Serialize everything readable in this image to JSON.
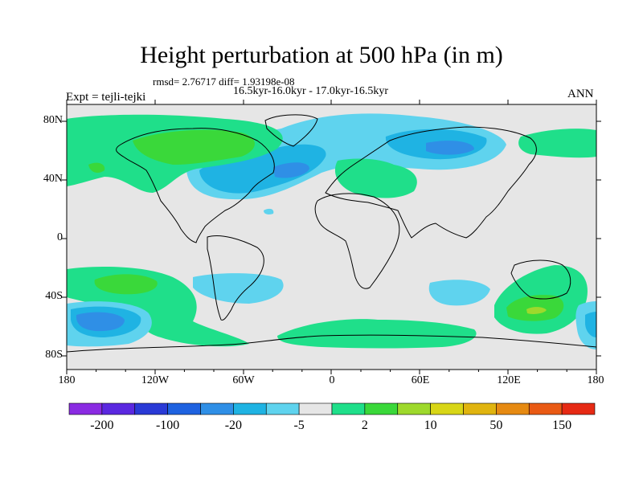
{
  "title": "Height perturbation at 500 hPa (in m)",
  "stats": "rmsd= 2.76717 diff= 1.93198e-08",
  "period": "16.5kyr-16.0kyr - 17.0kyr-16.5kyr",
  "experiment": "Expt = tejli-tejki",
  "season": "ANN",
  "y_axis_labels": [
    "80N",
    "40N",
    "0",
    "40S",
    "80S"
  ],
  "x_axis_labels": [
    "180",
    "120W",
    "60W",
    "0",
    "60E",
    "120E",
    "180"
  ],
  "colorbar": {
    "labels": [
      "-200",
      "-100",
      "-20",
      "-5",
      "2",
      "10",
      "50",
      "150"
    ],
    "colors": [
      "#8a2be2",
      "#5b28e0",
      "#2a3ad6",
      "#1e62e0",
      "#2f8fe6",
      "#1fb3e3",
      "#5fd3ee",
      "#e6e6e6",
      "#1fdf8a",
      "#3ad83a",
      "#9ed92c",
      "#d8d617",
      "#e0b40f",
      "#e68a12",
      "#e95a14",
      "#e62a14"
    ]
  },
  "map_colors": {
    "ocean_bg": "#e6e6e6",
    "neg_light": "#5fd3ee",
    "neg_mid": "#1fb3e3",
    "neg_dark": "#2f8fe6",
    "pos_light": "#1fdf8a",
    "pos_mid": "#3ad83a",
    "pos_strong": "#9ed92c"
  }
}
